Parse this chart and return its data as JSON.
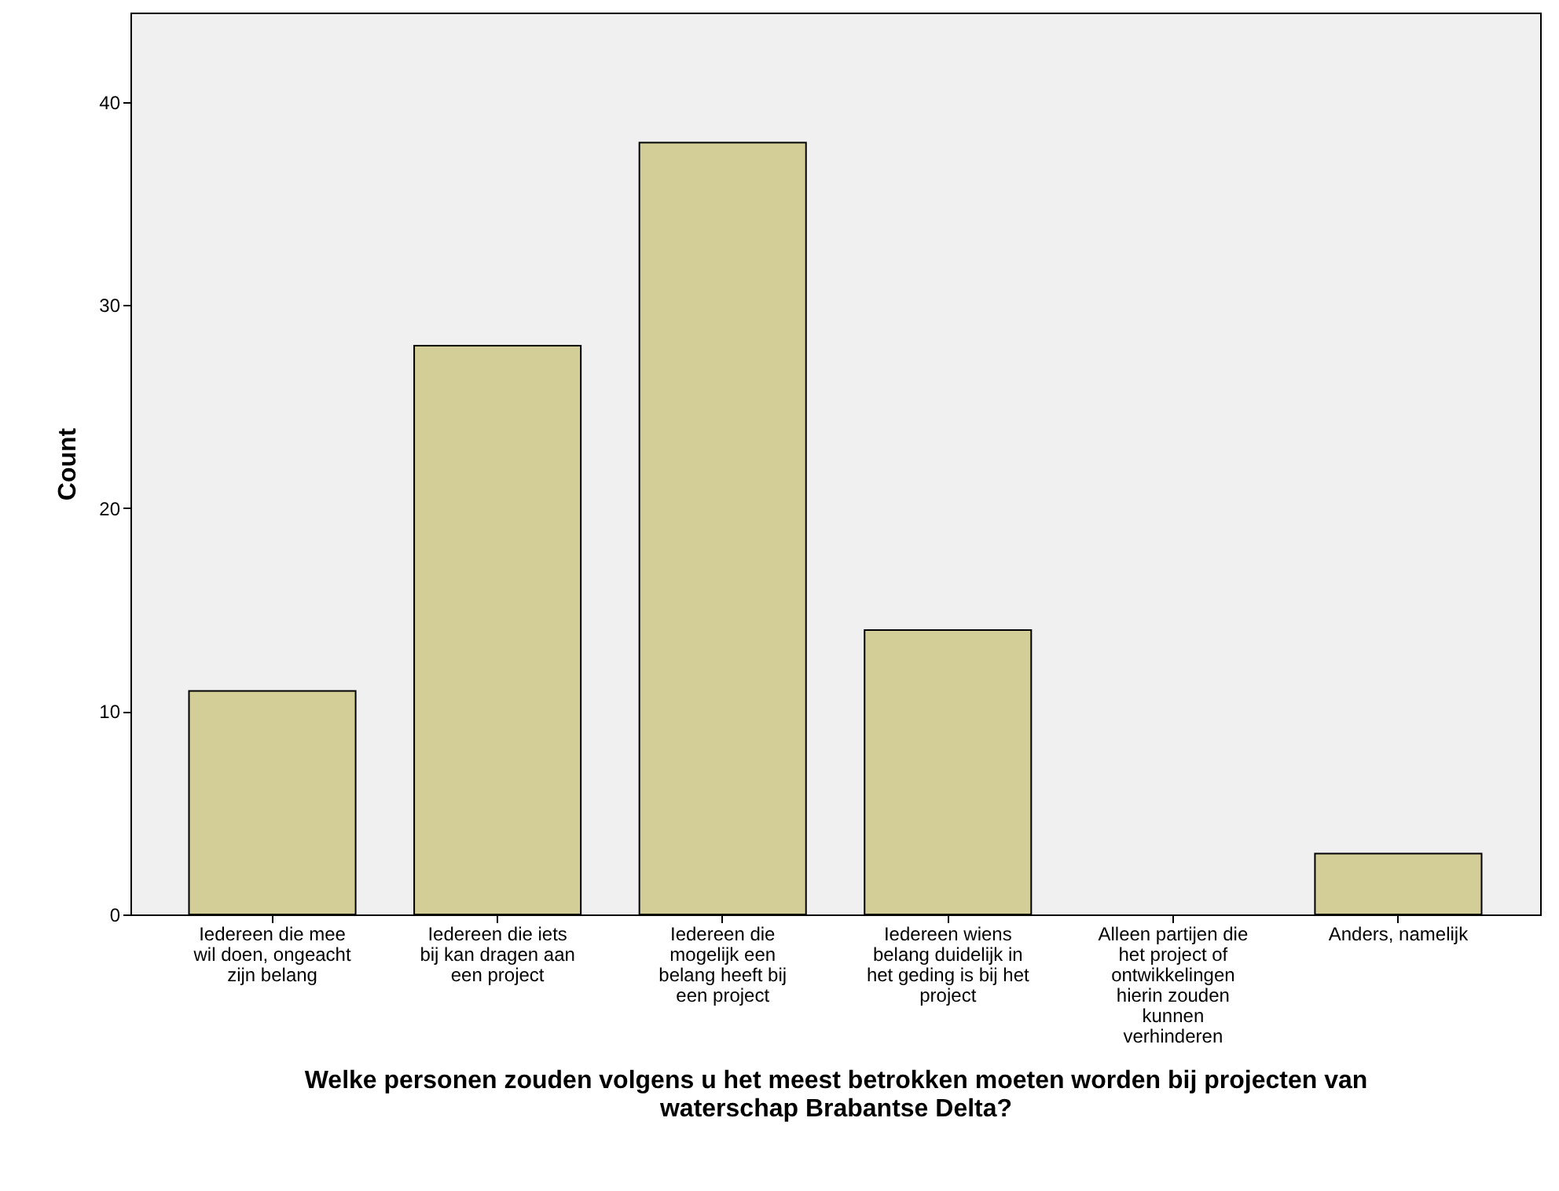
{
  "chart_data": {
    "type": "bar",
    "categories": [
      "Iedereen die mee wil doen, ongeacht zijn belang",
      "Iedereen die iets bij kan dragen aan een project",
      "Iedereen die mogelijk een belang heeft bij een project",
      "Iedereen wiens belang duidelijk in het geding is bij het project",
      "Alleen partijen die het project of ontwikkelingen hierin zouden kunnen verhinderen",
      "Anders, namelijk"
    ],
    "values": [
      11,
      28,
      38,
      14,
      0,
      3
    ],
    "color": "#d3ce97",
    "ylim": [
      0,
      44.4
    ],
    "yticks": [
      0,
      10,
      20,
      30,
      40
    ],
    "xlabel": "Welke personen zouden volgens u het meest betrokken moeten worden bij projecten van waterschap Brabantse Delta?",
    "ylabel": "Count",
    "grid": false
  }
}
